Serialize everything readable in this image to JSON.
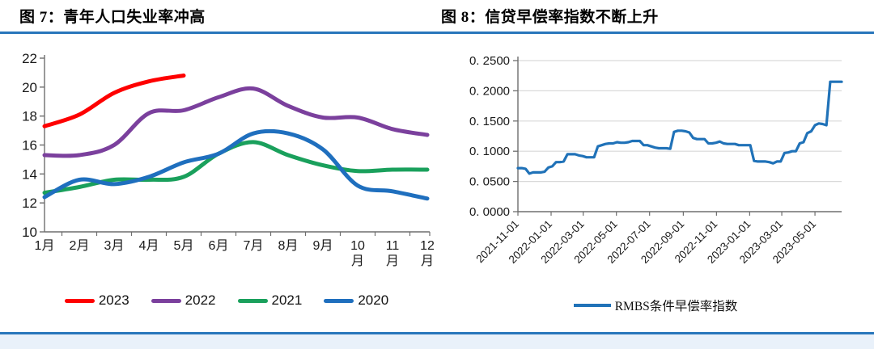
{
  "page": {
    "rule_color": "#2876bb",
    "bottom_strip_color": "#e9f1fa",
    "axis_color": "#6e6e6e",
    "grid_color": "#d9d9d9",
    "label_color": "#1a1a1a"
  },
  "chart_data": [
    {
      "type": "line",
      "title": "图 7：青年人口失业率冲高",
      "smooth": true,
      "grid": false,
      "legend_position": "bottom",
      "categories": [
        "1月",
        "2月",
        "3月",
        "4月",
        "5月",
        "6月",
        "7月",
        "8月",
        "9月",
        "10月",
        "11月",
        "12月"
      ],
      "ylim": [
        10,
        22
      ],
      "ytick_step": 2,
      "ytick_labels": [
        "10",
        "12",
        "14",
        "16",
        "18",
        "20",
        "22"
      ],
      "series": [
        {
          "name": "2023",
          "color": "#fe0000",
          "values": [
            17.3,
            18.1,
            19.6,
            20.4,
            20.8
          ]
        },
        {
          "name": "2022",
          "color": "#7b409d",
          "values": [
            15.3,
            15.3,
            16.0,
            18.2,
            18.4,
            19.3,
            19.9,
            18.7,
            17.9,
            17.9,
            17.1,
            16.7
          ]
        },
        {
          "name": "2021",
          "color": "#1aa05c",
          "values": [
            12.7,
            13.1,
            13.6,
            13.6,
            13.8,
            15.4,
            16.2,
            15.3,
            14.6,
            14.2,
            14.3,
            14.3
          ]
        },
        {
          "name": "2020",
          "color": "#1f6fbe",
          "values": [
            12.4,
            13.6,
            13.3,
            13.8,
            14.8,
            15.4,
            16.8,
            16.8,
            15.7,
            13.2,
            12.8,
            12.3
          ]
        }
      ]
    },
    {
      "type": "line",
      "title": "图 8：信贷早偿率指数不断上升",
      "smooth": false,
      "grid": true,
      "legend_position": "bottom",
      "ylim": [
        0,
        0.25
      ],
      "y_tick_labels": [
        "0. 0000",
        "0. 0500",
        "0. 1000",
        "0. 1500",
        "0. 2000",
        "0. 2500"
      ],
      "x_tick_labels": [
        "2021-11-01",
        "2022-01-01",
        "2022-03-01",
        "2022-05-01",
        "2022-07-01",
        "2022-09-01",
        "2022-11-01",
        "2023-01-01",
        "2023-03-01",
        "2023-05-01"
      ],
      "series": [
        {
          "name": "RMBS条件早偿率指数",
          "color": "#2072b8",
          "start_date": "2021-11-01",
          "interval_days": 7,
          "values": [
            0.072,
            0.072,
            0.071,
            0.063,
            0.065,
            0.065,
            0.065,
            0.066,
            0.073,
            0.075,
            0.082,
            0.082,
            0.083,
            0.095,
            0.095,
            0.095,
            0.093,
            0.092,
            0.09,
            0.09,
            0.09,
            0.108,
            0.11,
            0.112,
            0.113,
            0.113,
            0.115,
            0.114,
            0.114,
            0.115,
            0.117,
            0.117,
            0.117,
            0.11,
            0.11,
            0.108,
            0.106,
            0.105,
            0.105,
            0.105,
            0.104,
            0.132,
            0.134,
            0.134,
            0.133,
            0.131,
            0.122,
            0.12,
            0.12,
            0.12,
            0.113,
            0.113,
            0.114,
            0.116,
            0.113,
            0.112,
            0.112,
            0.112,
            0.11,
            0.11,
            0.11,
            0.11,
            0.084,
            0.083,
            0.083,
            0.083,
            0.082,
            0.08,
            0.083,
            0.083,
            0.097,
            0.098,
            0.1,
            0.1,
            0.113,
            0.115,
            0.13,
            0.133,
            0.143,
            0.146,
            0.145,
            0.143,
            0.215,
            0.215,
            0.215,
            0.215
          ]
        }
      ]
    }
  ]
}
